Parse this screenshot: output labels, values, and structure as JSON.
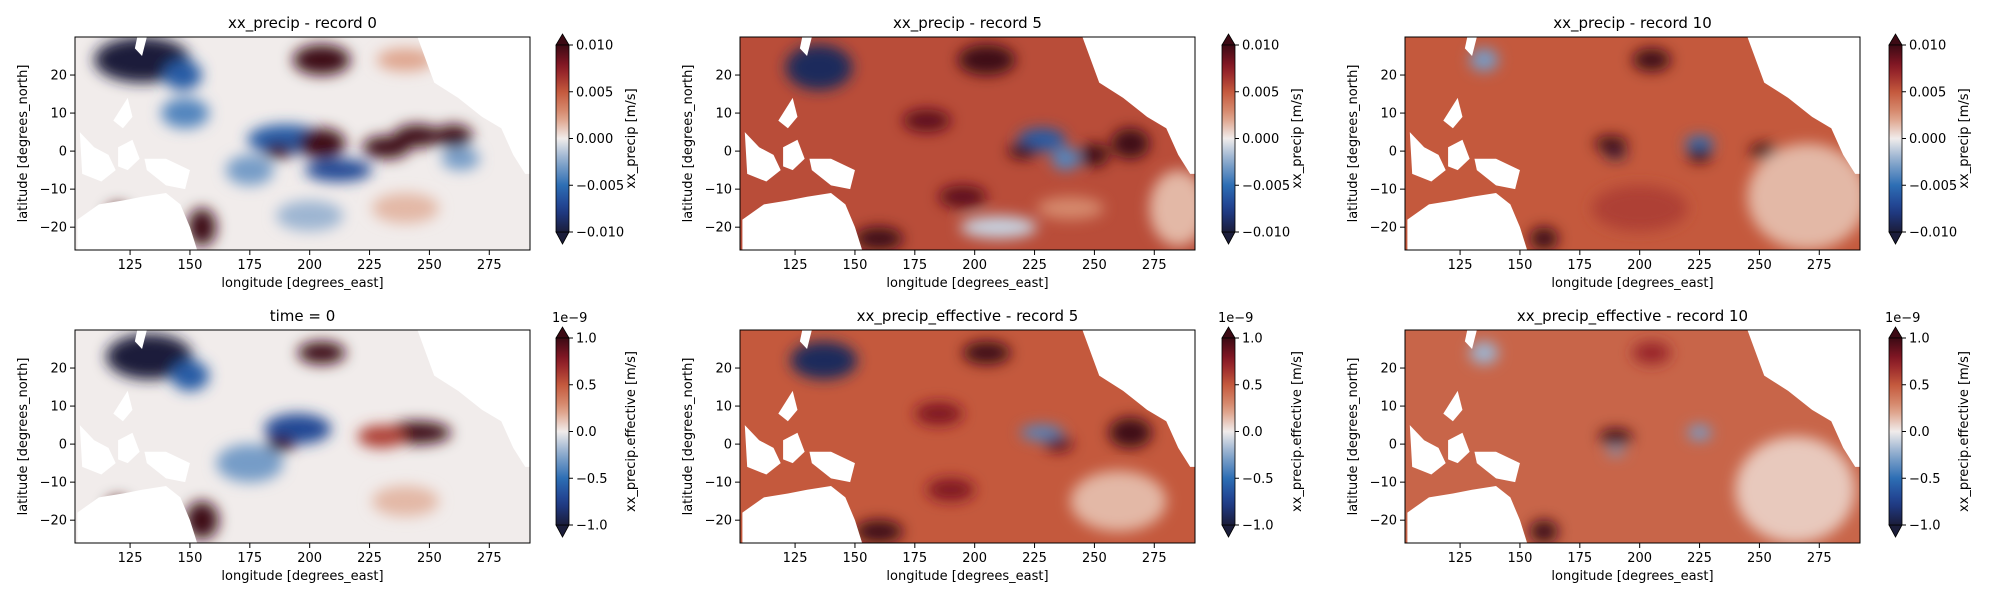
{
  "chart_data": [
    {
      "type": "heatmap",
      "title": "xx_precip - record 0",
      "xlabel": "longitude [degrees_east]",
      "ylabel": "latitude [degrees_north]",
      "xlim": [
        102,
        292
      ],
      "ylim": [
        -26,
        30
      ],
      "x_ticks": [
        125,
        150,
        175,
        200,
        225,
        250,
        275
      ],
      "y_ticks": [
        -20,
        -10,
        0,
        10,
        20
      ],
      "colorbar": {
        "label": "xx_precip [m/s]",
        "range": [
          -0.01,
          0.01
        ],
        "ticks": [
          "0.010",
          "0.005",
          "0.000",
          "−0.005",
          "−0.010"
        ],
        "offset": "",
        "extend": "both"
      },
      "background_anomaly": 0.0,
      "features": [
        {
          "lon": 130,
          "lat": 24,
          "rx": 20,
          "ry": 6,
          "value": -0.012
        },
        {
          "lon": 147,
          "lat": 20,
          "rx": 8,
          "ry": 4,
          "value": -0.006
        },
        {
          "lon": 148,
          "lat": 10,
          "rx": 10,
          "ry": 4,
          "value": -0.004
        },
        {
          "lon": 205,
          "lat": 24,
          "rx": 12,
          "ry": 4,
          "value": 0.012
        },
        {
          "lon": 240,
          "lat": 24,
          "rx": 12,
          "ry": 3,
          "value": 0.002
        },
        {
          "lon": 190,
          "lat": 3,
          "rx": 16,
          "ry": 4,
          "value": -0.006
        },
        {
          "lon": 205,
          "lat": 2,
          "rx": 10,
          "ry": 4,
          "value": 0.011
        },
        {
          "lon": 187,
          "lat": 0,
          "rx": 6,
          "ry": 2,
          "value": 0.012
        },
        {
          "lon": 212,
          "lat": -5,
          "rx": 14,
          "ry": 3,
          "value": -0.007
        },
        {
          "lon": 232,
          "lat": 1,
          "rx": 10,
          "ry": 3,
          "value": 0.011
        },
        {
          "lon": 245,
          "lat": 4,
          "rx": 10,
          "ry": 3,
          "value": 0.012
        },
        {
          "lon": 260,
          "lat": 4,
          "rx": 8,
          "ry": 3,
          "value": 0.012
        },
        {
          "lon": 263,
          "lat": -2,
          "rx": 8,
          "ry": 3,
          "value": -0.003
        },
        {
          "lon": 175,
          "lat": -5,
          "rx": 10,
          "ry": 4,
          "value": -0.003
        },
        {
          "lon": 200,
          "lat": -17,
          "rx": 14,
          "ry": 4,
          "value": -0.002
        },
        {
          "lon": 120,
          "lat": -17,
          "rx": 5,
          "ry": 3,
          "value": 0.012
        },
        {
          "lon": 155,
          "lat": -20,
          "rx": 6,
          "ry": 5,
          "value": 0.012
        },
        {
          "lon": 240,
          "lat": -15,
          "rx": 14,
          "ry": 4,
          "value": 0.0015
        }
      ]
    },
    {
      "type": "heatmap",
      "title": "xx_precip - record 5",
      "xlabel": "longitude [degrees_east]",
      "ylabel": "latitude [degrees_north]",
      "xlim": [
        102,
        292
      ],
      "ylim": [
        -26,
        30
      ],
      "x_ticks": [
        125,
        150,
        175,
        200,
        225,
        250,
        275
      ],
      "y_ticks": [
        -20,
        -10,
        0,
        10,
        20
      ],
      "colorbar": {
        "label": "xx_precip [m/s]",
        "range": [
          -0.01,
          0.01
        ],
        "ticks": [
          "0.010",
          "0.005",
          "0.000",
          "−0.005",
          "−0.010"
        ],
        "offset": "",
        "extend": "both"
      },
      "background_anomaly": 0.0055,
      "features": [
        {
          "lon": 135,
          "lat": 22,
          "rx": 14,
          "ry": 6,
          "value": -0.009
        },
        {
          "lon": 205,
          "lat": 24,
          "rx": 12,
          "ry": 4,
          "value": 0.012
        },
        {
          "lon": 180,
          "lat": 8,
          "rx": 10,
          "ry": 3,
          "value": 0.009
        },
        {
          "lon": 228,
          "lat": 3,
          "rx": 10,
          "ry": 3,
          "value": -0.006
        },
        {
          "lon": 220,
          "lat": 0,
          "rx": 6,
          "ry": 2,
          "value": 0.012
        },
        {
          "lon": 238,
          "lat": -2,
          "rx": 6,
          "ry": 3,
          "value": -0.004
        },
        {
          "lon": 250,
          "lat": -1,
          "rx": 6,
          "ry": 3,
          "value": 0.012
        },
        {
          "lon": 265,
          "lat": 2,
          "rx": 8,
          "ry": 4,
          "value": 0.012
        },
        {
          "lon": 195,
          "lat": -12,
          "rx": 10,
          "ry": 3,
          "value": 0.009
        },
        {
          "lon": 240,
          "lat": -15,
          "rx": 14,
          "ry": 3,
          "value": 0.003
        },
        {
          "lon": 210,
          "lat": -20,
          "rx": 16,
          "ry": 3,
          "value": -0.001
        },
        {
          "lon": 160,
          "lat": -23,
          "rx": 10,
          "ry": 3,
          "value": 0.012
        },
        {
          "lon": 285,
          "lat": -15,
          "rx": 12,
          "ry": 10,
          "value": 0.0015
        }
      ]
    },
    {
      "type": "heatmap",
      "title": "xx_precip - record 10",
      "xlabel": "longitude [degrees_east]",
      "ylabel": "latitude [degrees_north]",
      "xlim": [
        102,
        292
      ],
      "ylim": [
        -26,
        30
      ],
      "x_ticks": [
        125,
        150,
        175,
        200,
        225,
        250,
        275
      ],
      "y_ticks": [
        -20,
        -10,
        0,
        10,
        20
      ],
      "colorbar": {
        "label": "xx_precip [m/s]",
        "range": [
          -0.01,
          0.01
        ],
        "ticks": [
          "0.010",
          "0.005",
          "0.000",
          "−0.005",
          "−0.010"
        ],
        "offset": "",
        "extend": "both"
      },
      "background_anomaly": 0.005,
      "features": [
        {
          "lon": 135,
          "lat": 24,
          "rx": 6,
          "ry": 3,
          "value": -0.003
        },
        {
          "lon": 205,
          "lat": 24,
          "rx": 8,
          "ry": 3,
          "value": 0.011
        },
        {
          "lon": 188,
          "lat": 2,
          "rx": 7,
          "ry": 2,
          "value": 0.012
        },
        {
          "lon": 190,
          "lat": -1,
          "rx": 5,
          "ry": 1,
          "value": -0.012
        },
        {
          "lon": 225,
          "lat": 2,
          "rx": 6,
          "ry": 2,
          "value": -0.005
        },
        {
          "lon": 225,
          "lat": -1,
          "rx": 5,
          "ry": 2,
          "value": 0.012
        },
        {
          "lon": 252,
          "lat": 0,
          "rx": 6,
          "ry": 2,
          "value": 0.012
        },
        {
          "lon": 160,
          "lat": -23,
          "rx": 6,
          "ry": 3,
          "value": 0.012
        },
        {
          "lon": 270,
          "lat": -12,
          "rx": 25,
          "ry": 14,
          "value": 0.0015
        },
        {
          "lon": 200,
          "lat": -15,
          "rx": 20,
          "ry": 6,
          "value": 0.006
        }
      ]
    },
    {
      "type": "heatmap",
      "title": "time = 0",
      "xlabel": "longitude [degrees_east]",
      "ylabel": "latitude [degrees_north]",
      "xlim": [
        102,
        292
      ],
      "ylim": [
        -26,
        30
      ],
      "x_ticks": [
        125,
        150,
        175,
        200,
        225,
        250,
        275
      ],
      "y_ticks": [
        -20,
        -10,
        0,
        10,
        20
      ],
      "colorbar": {
        "label": "xx_precip.effective [m/s]",
        "range": [
          -1.0,
          1.0
        ],
        "ticks": [
          "1.0",
          "0.5",
          "0.0",
          "−0.5",
          "−1.0"
        ],
        "offset": "1e−9",
        "extend": "both"
      },
      "background_anomaly": 0.0,
      "features": [
        {
          "lon": 133,
          "lat": 23,
          "rx": 18,
          "ry": 6,
          "value": -1.2
        },
        {
          "lon": 150,
          "lat": 18,
          "rx": 8,
          "ry": 4,
          "value": -0.6
        },
        {
          "lon": 205,
          "lat": 24,
          "rx": 10,
          "ry": 3,
          "value": 1.2
        },
        {
          "lon": 195,
          "lat": 4,
          "rx": 14,
          "ry": 4,
          "value": -0.7
        },
        {
          "lon": 188,
          "lat": 0,
          "rx": 6,
          "ry": 2,
          "value": 1.2
        },
        {
          "lon": 245,
          "lat": 3,
          "rx": 14,
          "ry": 3,
          "value": 1.2
        },
        {
          "lon": 230,
          "lat": 2,
          "rx": 10,
          "ry": 3,
          "value": 0.6
        },
        {
          "lon": 175,
          "lat": -5,
          "rx": 14,
          "ry": 5,
          "value": -0.3
        },
        {
          "lon": 120,
          "lat": -17,
          "rx": 5,
          "ry": 3,
          "value": 1.2
        },
        {
          "lon": 155,
          "lat": -20,
          "rx": 7,
          "ry": 5,
          "value": 1.2
        },
        {
          "lon": 240,
          "lat": -15,
          "rx": 14,
          "ry": 4,
          "value": 0.15
        }
      ]
    },
    {
      "type": "heatmap",
      "title": "xx_precip_effective - record 5",
      "xlabel": "longitude [degrees_east]",
      "ylabel": "latitude [degrees_north]",
      "xlim": [
        102,
        292
      ],
      "ylim": [
        -26,
        30
      ],
      "x_ticks": [
        125,
        150,
        175,
        200,
        225,
        250,
        275
      ],
      "y_ticks": [
        -20,
        -10,
        0,
        10,
        20
      ],
      "colorbar": {
        "label": "xx_precip.effective [m/s]",
        "range": [
          -1.0,
          1.0
        ],
        "ticks": [
          "1.0",
          "0.5",
          "0.0",
          "−0.5",
          "−1.0"
        ],
        "offset": "1e−9",
        "extend": "both"
      },
      "background_anomaly": 0.5,
      "features": [
        {
          "lon": 137,
          "lat": 22,
          "rx": 14,
          "ry": 5,
          "value": -0.9
        },
        {
          "lon": 205,
          "lat": 24,
          "rx": 10,
          "ry": 3,
          "value": 1.2
        },
        {
          "lon": 185,
          "lat": 8,
          "rx": 10,
          "ry": 3,
          "value": 0.8
        },
        {
          "lon": 228,
          "lat": 3,
          "rx": 9,
          "ry": 2,
          "value": -0.4
        },
        {
          "lon": 265,
          "lat": 3,
          "rx": 9,
          "ry": 4,
          "value": 1.2
        },
        {
          "lon": 235,
          "lat": 0,
          "rx": 6,
          "ry": 2,
          "value": 0.9
        },
        {
          "lon": 190,
          "lat": -12,
          "rx": 10,
          "ry": 3,
          "value": 0.8
        },
        {
          "lon": 160,
          "lat": -23,
          "rx": 10,
          "ry": 3,
          "value": 1.2
        },
        {
          "lon": 260,
          "lat": -15,
          "rx": 20,
          "ry": 8,
          "value": 0.15
        }
      ]
    },
    {
      "type": "heatmap",
      "title": "xx_precip_effective - record 10",
      "xlabel": "longitude [degrees_east]",
      "ylabel": "latitude [degrees_north]",
      "xlim": [
        102,
        292
      ],
      "ylim": [
        -26,
        30
      ],
      "x_ticks": [
        125,
        150,
        175,
        200,
        225,
        250,
        275
      ],
      "y_ticks": [
        -20,
        -10,
        0,
        10,
        20
      ],
      "colorbar": {
        "label": "xx_precip.effective [m/s]",
        "range": [
          -1.0,
          1.0
        ],
        "ticks": [
          "1.0",
          "0.5",
          "0.0",
          "−0.5",
          "−1.0"
        ],
        "offset": "1e−9",
        "extend": "both"
      },
      "background_anomaly": 0.45,
      "features": [
        {
          "lon": 135,
          "lat": 24,
          "rx": 6,
          "ry": 3,
          "value": -0.2
        },
        {
          "lon": 205,
          "lat": 24,
          "rx": 8,
          "ry": 3,
          "value": 0.7
        },
        {
          "lon": 190,
          "lat": 2,
          "rx": 7,
          "ry": 2,
          "value": 1.1
        },
        {
          "lon": 225,
          "lat": 3,
          "rx": 5,
          "ry": 2,
          "value": -0.3
        },
        {
          "lon": 190,
          "lat": -2,
          "rx": 4,
          "ry": 1,
          "value": -0.3
        },
        {
          "lon": 160,
          "lat": -23,
          "rx": 6,
          "ry": 3,
          "value": 1.2
        },
        {
          "lon": 265,
          "lat": -12,
          "rx": 25,
          "ry": 14,
          "value": 0.1
        }
      ]
    }
  ],
  "colors": {
    "land": "#ffffff",
    "axes_frame": "#000000"
  }
}
